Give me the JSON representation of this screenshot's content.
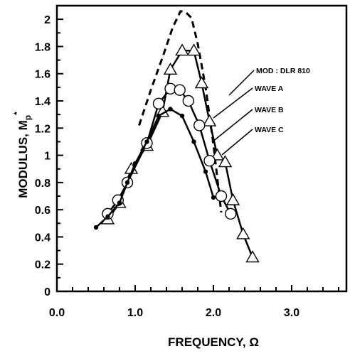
{
  "chart_data": {
    "type": "line",
    "xlabel": "FREQUENCY, Ω",
    "ylabel": "MODULUS, M",
    "ylabel_sub": "p",
    "ylabel_sup": "*",
    "xlim": [
      0.0,
      3.7
    ],
    "ylim": [
      0,
      2.1
    ],
    "x_ticks": [
      "0.0",
      "1.0",
      "2.0",
      "3.0"
    ],
    "x_tick_values": [
      0,
      1,
      2,
      3
    ],
    "y_ticks": [
      "0",
      "0.2",
      "0.4",
      "0.6",
      "0.8",
      "1",
      "1.2",
      "1.4",
      "1.6",
      "1.8",
      "2"
    ],
    "y_tick_values": [
      0,
      0.2,
      0.4,
      0.6,
      0.8,
      1,
      1.2,
      1.4,
      1.6,
      1.8,
      2
    ],
    "grid": false,
    "legend_position": "right, with leader lines to curves",
    "series": [
      {
        "name": "MOD : DLR 810",
        "style": "dashed",
        "marker": "none",
        "x": [
          1.05,
          1.2,
          1.35,
          1.48,
          1.58,
          1.65,
          1.72,
          1.8,
          1.9,
          2.0,
          2.1
        ],
        "y": [
          1.22,
          1.48,
          1.72,
          1.94,
          2.06,
          2.05,
          2.01,
          1.82,
          1.5,
          1.08,
          0.58
        ]
      },
      {
        "name": "WAVE A",
        "style": "solid",
        "marker": "triangle",
        "x": [
          0.65,
          0.8,
          0.95,
          1.15,
          1.35,
          1.45,
          1.6,
          1.75,
          1.85,
          1.95,
          2.05,
          2.15,
          2.25,
          2.38,
          2.5
        ],
        "y": [
          0.53,
          0.65,
          0.9,
          1.07,
          1.32,
          1.63,
          1.77,
          1.77,
          1.53,
          1.25,
          1.0,
          0.95,
          0.67,
          0.42,
          0.25
        ]
      },
      {
        "name": "WAVE B",
        "style": "solid",
        "marker": "circle",
        "x": [
          0.65,
          0.78,
          0.9,
          1.15,
          1.3,
          1.45,
          1.57,
          1.68,
          1.82,
          1.95,
          2.1,
          2.22
        ],
        "y": [
          0.57,
          0.67,
          0.8,
          1.09,
          1.38,
          1.49,
          1.48,
          1.4,
          1.22,
          0.96,
          0.7,
          0.57
        ]
      },
      {
        "name": "WAVE C",
        "style": "solid",
        "marker": "dot",
        "x": [
          0.5,
          0.65,
          0.8,
          0.9,
          1.0,
          1.15,
          1.3,
          1.45,
          1.6,
          1.75,
          1.9,
          2.0
        ],
        "y": [
          0.47,
          0.55,
          0.65,
          0.8,
          0.94,
          1.1,
          1.29,
          1.34,
          1.29,
          1.1,
          0.88,
          0.69
        ]
      }
    ],
    "legend_labels": [
      {
        "series": "MOD : DLR 810",
        "text": "MOD : DLR 810"
      },
      {
        "series": "WAVE A",
        "text": "WAVE A"
      },
      {
        "series": "WAVE B",
        "text": "WAVE B"
      },
      {
        "series": "WAVE C",
        "text": "WAVE C"
      }
    ]
  }
}
